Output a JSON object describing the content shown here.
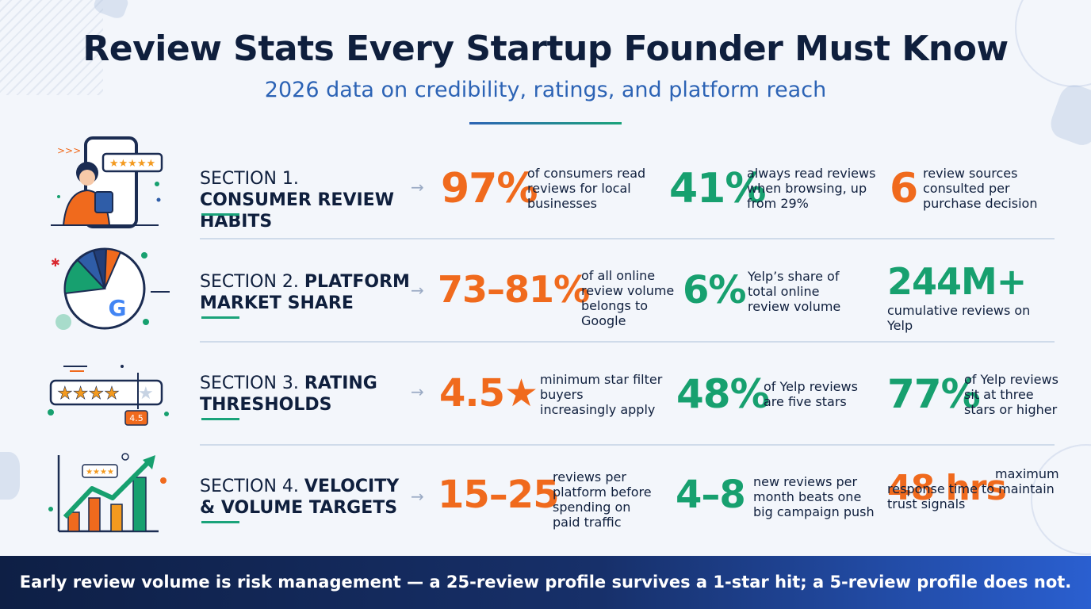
{
  "header": {
    "title": "Review Stats Every Startup Founder Must Know",
    "subtitle": "2026 data on credibility, ratings, and platform reach"
  },
  "colors": {
    "navy": "#0f1f3d",
    "blue": "#2c63b5",
    "orange": "#f06a1d",
    "green": "#17a06f"
  },
  "sections": [
    {
      "lead": "SECTION 1.",
      "name": "CONSUMER REVIEW HABITS",
      "icon": "phone-reviewer-icon",
      "stats": [
        {
          "value": "97%",
          "desc": "of consumers read reviews for local businesses",
          "color": "orange"
        },
        {
          "value": "41%",
          "desc": "always read reviews when browsing, up from 29%",
          "color": "green"
        },
        {
          "value": "6",
          "desc": "review sources consulted per purchase decision",
          "color": "orange"
        }
      ]
    },
    {
      "lead": "SECTION 2.",
      "name": "PLATFORM MARKET SHARE",
      "icon": "pie-chart-google-icon",
      "stats": [
        {
          "value": "73–81%",
          "desc": "of all online review volume belongs to Google",
          "color": "orange"
        },
        {
          "value": "6%",
          "desc": "Yelp’s share of total online review volume",
          "color": "green"
        },
        {
          "value": "244M+",
          "desc": "cumulative reviews on Yelp",
          "color": "green"
        }
      ]
    },
    {
      "lead": "SECTION 3.",
      "name": "RATING THRESHOLDS",
      "icon": "star-rating-icon",
      "rating_badge": "4.5",
      "stats": [
        {
          "value": "4.5★",
          "desc": "minimum star filter buyers increasingly apply",
          "color": "orange"
        },
        {
          "value": "48%",
          "desc": "of Yelp reviews are five stars",
          "color": "green"
        },
        {
          "value": "77%",
          "desc": "of Yelp reviews sit at three stars or higher",
          "color": "green"
        }
      ]
    },
    {
      "lead": "SECTION 4.",
      "name": "VELOCITY & VOLUME TARGETS",
      "icon": "growth-chart-icon",
      "stats": [
        {
          "value": "15–25",
          "desc": "reviews per platform before spending on paid traffic",
          "color": "orange"
        },
        {
          "value": "4–8",
          "desc": "new reviews per month beats one big campaign push",
          "color": "green"
        },
        {
          "value": "48 hrs",
          "desc": "maximum response time to maintain trust signals",
          "color": "orange"
        }
      ]
    }
  ],
  "footer": {
    "text": "Early review volume is risk management — a 25-review profile survives a 1-star hit; a 5-review profile does not."
  }
}
